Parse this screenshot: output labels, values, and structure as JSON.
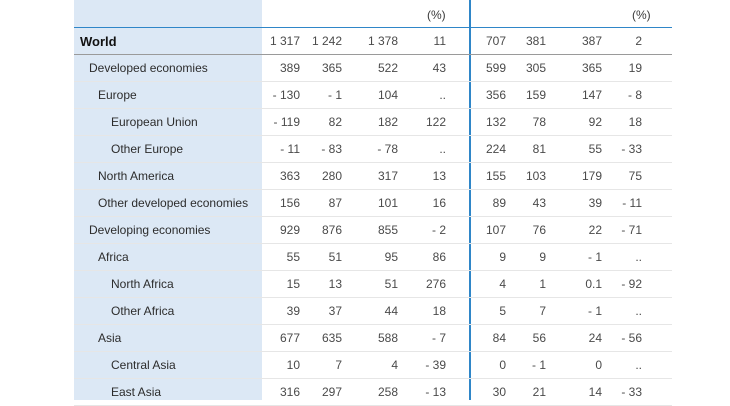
{
  "header": {
    "pct_left": "(%)",
    "pct_right": "(%)"
  },
  "rows": [
    {
      "label": "World",
      "level": 0,
      "bold": true,
      "values": [
        "1 317",
        "1 242",
        "1 378",
        "11",
        "707",
        "381",
        "387",
        "2"
      ]
    },
    {
      "label": "Developed economies",
      "level": 1,
      "values": [
        "389",
        "365",
        "522",
        "43",
        "599",
        "305",
        "365",
        "19"
      ]
    },
    {
      "label": "Europe",
      "level": 2,
      "values": [
        "- 130",
        "- 1",
        "104",
        "..",
        "356",
        "159",
        "147",
        "- 8"
      ]
    },
    {
      "label": "European Union",
      "level": 3,
      "values": [
        "- 119",
        "82",
        "182",
        "122",
        "132",
        "78",
        "92",
        "18"
      ]
    },
    {
      "label": "Other Europe",
      "level": 3,
      "values": [
        "- 11",
        "- 83",
        "- 78",
        "..",
        "224",
        "81",
        "55",
        "- 33"
      ]
    },
    {
      "label": "North America",
      "level": 2,
      "values": [
        "363",
        "280",
        "317",
        "13",
        "155",
        "103",
        "179",
        "75"
      ]
    },
    {
      "label": "Other developed economies",
      "level": 2,
      "values": [
        "156",
        "87",
        "101",
        "16",
        "89",
        "43",
        "39",
        "- 11"
      ]
    },
    {
      "label": "Developing economies",
      "level": 1,
      "values": [
        "929",
        "876",
        "855",
        "- 2",
        "107",
        "76",
        "22",
        "- 71"
      ]
    },
    {
      "label": "Africa",
      "level": 2,
      "values": [
        "55",
        "51",
        "95",
        "86",
        "9",
        "9",
        "- 1",
        ".."
      ]
    },
    {
      "label": "North Africa",
      "level": 3,
      "values": [
        "15",
        "13",
        "51",
        "276",
        "4",
        "1",
        "0.1",
        "- 92"
      ]
    },
    {
      "label": "Other Africa",
      "level": 3,
      "values": [
        "39",
        "37",
        "44",
        "18",
        "5",
        "7",
        "- 1",
        ".."
      ]
    },
    {
      "label": "Asia",
      "level": 2,
      "values": [
        "677",
        "635",
        "588",
        "- 7",
        "84",
        "56",
        "24",
        "- 56"
      ]
    },
    {
      "label": "Central Asia",
      "level": 3,
      "values": [
        "10",
        "7",
        "4",
        "- 39",
        "0",
        "- 1",
        "0",
        ".."
      ]
    },
    {
      "label": "East Asia",
      "level": 3,
      "values": [
        "316",
        "297",
        "258",
        "- 13",
        "30",
        "21",
        "14",
        "- 33"
      ]
    }
  ]
}
